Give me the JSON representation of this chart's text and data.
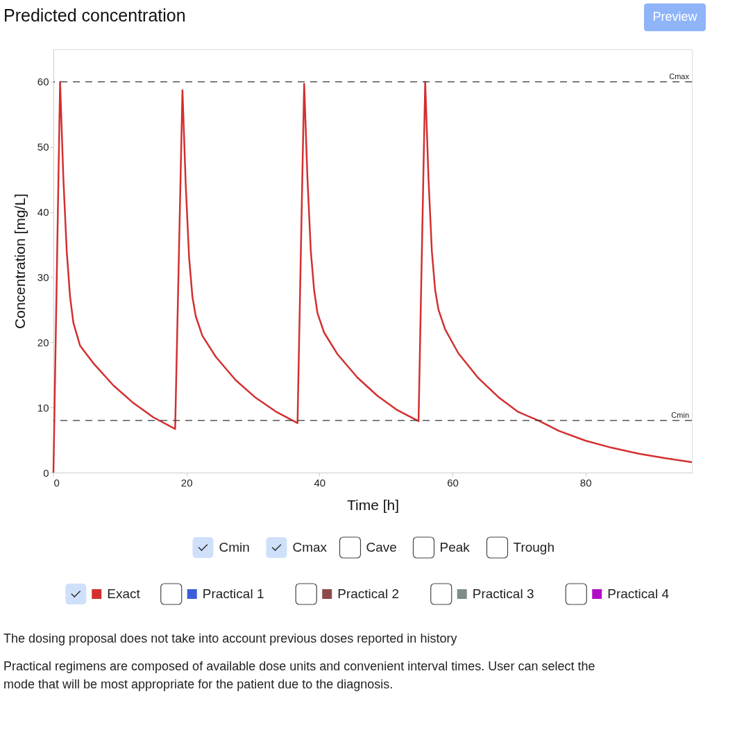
{
  "chart_data": {
    "type": "line",
    "title": "Predicted concentration",
    "xlabel": "Time [h]",
    "ylabel": "Concentration [mg/L]",
    "xlim": [
      0,
      96
    ],
    "xticks": [
      0,
      20,
      40,
      60,
      80
    ],
    "ylim": [
      0,
      65
    ],
    "yticks": [
      0,
      10,
      20,
      30,
      40,
      50,
      60
    ],
    "grid": false,
    "legend": "bottom",
    "line_style": "solid",
    "marker": "none",
    "series": [
      {
        "name": "Exact",
        "color": "#d32f2f",
        "x": [
          0,
          1,
          1.5,
          2,
          2.5,
          3,
          4,
          6,
          9,
          12,
          15,
          18.3,
          19.4,
          19.9,
          20.4,
          20.9,
          21.4,
          22.4,
          24.4,
          27.4,
          30.4,
          33.4,
          36.7,
          37.7,
          38.2,
          38.7,
          39.2,
          39.7,
          40.7,
          42.7,
          45.7,
          48.7,
          51.7,
          54.9,
          55.9,
          56.4,
          56.9,
          57.4,
          57.9,
          58.9,
          60.9,
          63.9,
          66.9,
          69.9,
          72.9,
          76,
          80,
          84,
          88,
          92,
          96
        ],
        "values": [
          0,
          60,
          45,
          34,
          27,
          23,
          19.5,
          16.8,
          13.4,
          10.7,
          8.5,
          6.7,
          58.7,
          44,
          33,
          27,
          24,
          21,
          17.8,
          14.2,
          11.5,
          9.4,
          7.6,
          59.7,
          45,
          34,
          28,
          24.5,
          21.5,
          18.2,
          14.6,
          11.8,
          9.6,
          7.9,
          60,
          45,
          34,
          28,
          25,
          22,
          18.3,
          14.5,
          11.6,
          9.3,
          8,
          6.4,
          4.9,
          3.8,
          2.9,
          2.2,
          1.6
        ]
      },
      {
        "name": "Practical 1",
        "color": "#3b5fd9"
      },
      {
        "name": "Practical 2",
        "color": "#8d4a4a"
      },
      {
        "name": "Practical 3",
        "color": "#7f8c8c"
      },
      {
        "name": "Practical 4",
        "color": "#b10dc9"
      }
    ],
    "ref_lines": [
      {
        "axis": "y",
        "value": 60,
        "label": "Cmax",
        "color": "#333333",
        "line_style": "dashed"
      },
      {
        "axis": "y",
        "value": 8,
        "label": "Cmin",
        "color": "#333333",
        "line_style": "dashed"
      }
    ],
    "annotations": [
      "Preview",
      "Cmin",
      "Cmax",
      "Cave",
      "Peak",
      "Trough",
      "The dosing proposal does not take into account previous doses reported in history",
      "Practical regimens are composed of available dose units and convenient interval times. User can select the mode that will be most appropriate for the patient due to the diagnosis."
    ]
  }
}
